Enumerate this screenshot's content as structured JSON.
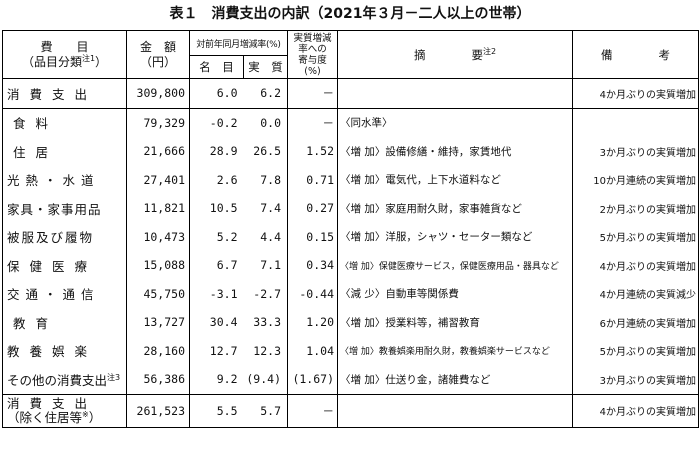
{
  "title": "表１　消費支出の内訳（2021年３月－二人以上の世帯）",
  "headers": {
    "item": "費　　目",
    "item_sub": "（品目分類",
    "item_note": "注1",
    "amount": "金　額",
    "amount_unit": "（円）",
    "rate_group": "対前年同月増減率(%)",
    "nominal": "名　目",
    "real": "実　質",
    "contrib_lines": [
      "実質増減",
      "率への",
      "寄与度",
      "(%)"
    ],
    "summary": "摘　　　　要",
    "summary_note": "注2",
    "remarks": "備　　　　考"
  },
  "rows": [
    {
      "item": "消費支出",
      "amount": "309,800",
      "nominal": "6.0",
      "real": "6.2",
      "contrib": "－",
      "summary": "",
      "note": "4か月ぶりの実質増加"
    },
    {
      "item": "食料",
      "amount": "79,329",
      "nominal": "-0.2",
      "real": "0.0",
      "contrib": "－",
      "summary": "〈同水準〉",
      "note": ""
    },
    {
      "item": "住居",
      "amount": "21,666",
      "nominal": "28.9",
      "real": "26.5",
      "contrib": "1.52",
      "summary": "〈増 加〉設備修繕・維持，家賃地代",
      "note": "3か月ぶりの実質増加"
    },
    {
      "item": "光熱・水道",
      "amount": "27,401",
      "nominal": "2.6",
      "real": "7.8",
      "contrib": "0.71",
      "summary": "〈増 加〉電気代，上下水道料など",
      "note": "10か月連続の実質増加"
    },
    {
      "item": "家具・家事用品",
      "amount": "11,821",
      "nominal": "10.5",
      "real": "7.4",
      "contrib": "0.27",
      "summary": "〈増 加〉家庭用耐久財，家事雑貨など",
      "note": "2か月ぶりの実質増加"
    },
    {
      "item": "被服及び履物",
      "amount": "10,473",
      "nominal": "5.2",
      "real": "4.4",
      "contrib": "0.15",
      "summary": "〈増 加〉洋服，シャツ・セーター類など",
      "note": "5か月ぶりの実質増加"
    },
    {
      "item": "保健医療",
      "amount": "15,088",
      "nominal": "6.7",
      "real": "7.1",
      "contrib": "0.34",
      "summary": "〈増 加〉保健医療サービス，保健医療用品・器具など",
      "note": "4か月ぶりの実質増加"
    },
    {
      "item": "交通・通信",
      "amount": "45,750",
      "nominal": "-3.1",
      "real": "-2.7",
      "contrib": "-0.44",
      "summary": "〈減 少〉自動車等関係費",
      "note": "4か月連続の実質減少"
    },
    {
      "item": "教育",
      "amount": "13,727",
      "nominal": "30.4",
      "real": "33.3",
      "contrib": "1.20",
      "summary": "〈増 加〉授業料等，補習教育",
      "note": "6か月連続の実質増加"
    },
    {
      "item": "教養娯楽",
      "amount": "28,160",
      "nominal": "12.7",
      "real": "12.3",
      "contrib": "1.04",
      "summary": "〈増 加〉教養娯楽用耐久財，教養娯楽サービスなど",
      "note": "5か月ぶりの実質増加"
    },
    {
      "item": "その他の消費支出",
      "item_note": "注3",
      "amount": "56,386",
      "nominal": "9.2",
      "real": "(9.4)",
      "contrib": "(1.67)",
      "summary": "〈増 加〉仕送り金，諸雑費など",
      "note": "3か月ぶりの実質増加"
    }
  ],
  "excl_row": {
    "item_line1": "消費支出",
    "item_line2": "（除く住居等",
    "item_mark": "※",
    "amount": "261,523",
    "nominal": "5.5",
    "real": "5.7",
    "contrib": "－",
    "summary": "",
    "note": "4か月ぶりの実質増加"
  }
}
